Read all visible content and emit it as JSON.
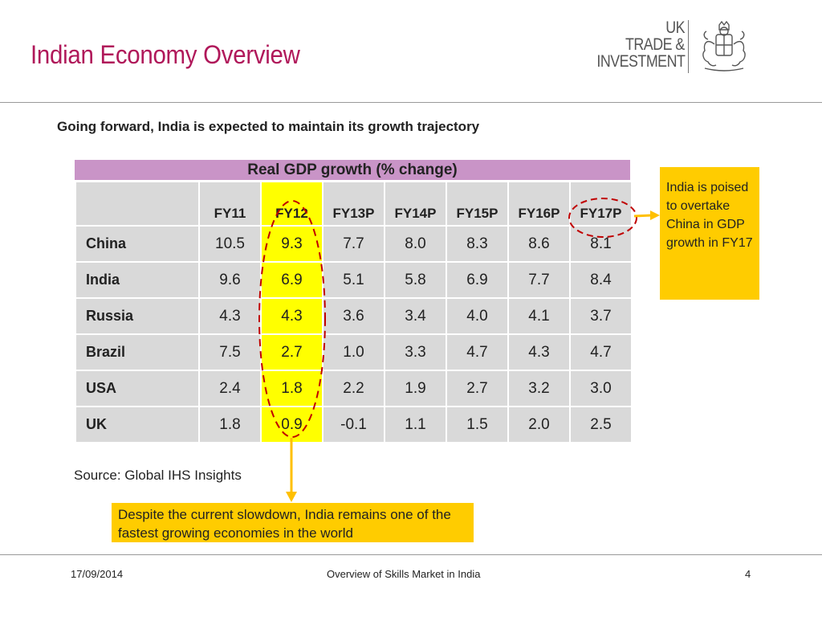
{
  "slide": {
    "title": "Indian Economy Overview",
    "subtitle": "Going forward, India is expected to maintain its growth trajectory"
  },
  "logo": {
    "lines": [
      "UK",
      "TRADE &",
      "INVESTMENT"
    ]
  },
  "table": {
    "title": "Real GDP growth (% change)",
    "columns": [
      "FY11",
      "FY12",
      "FY13P",
      "FY14P",
      "FY15P",
      "FY16P",
      "FY17P"
    ],
    "highlight_column": "FY12",
    "highlight_color": "#ffff00",
    "rows": [
      {
        "country": "China",
        "values": [
          "10.5",
          "9.3",
          "7.7",
          "8.0",
          "8.3",
          "8.6",
          "8.1"
        ]
      },
      {
        "country": "India",
        "values": [
          "9.6",
          "6.9",
          "5.1",
          "5.8",
          "6.9",
          "7.7",
          "8.4"
        ]
      },
      {
        "country": "Russia",
        "values": [
          "4.3",
          "4.3",
          "3.6",
          "3.4",
          "4.0",
          "4.1",
          "3.7"
        ]
      },
      {
        "country": "Brazil",
        "values": [
          "7.5",
          "2.7",
          "1.0",
          "3.3",
          "4.7",
          "4.3",
          "4.7"
        ]
      },
      {
        "country": "USA",
        "values": [
          "2.4",
          "1.8",
          "2.2",
          "1.9",
          "2.7",
          "3.2",
          "3.0"
        ]
      },
      {
        "country": "UK",
        "values": [
          "1.8",
          "0.9",
          "-0.1",
          "1.1",
          "1.5",
          "2.0",
          "2.5"
        ]
      }
    ]
  },
  "callouts": {
    "right": "India is poised to overtake China in GDP growth in FY17",
    "bottom": "Despite the current slowdown, India remains one of the fastest growing economies in the world"
  },
  "source": "Source: Global IHS Insights",
  "footer": {
    "date": "17/09/2014",
    "title": "Overview of Skills Market in India",
    "page": "4"
  },
  "colors": {
    "title": "#b0185a",
    "table_header_band": "#c994c7",
    "callout": "#ffcc00",
    "annotation_dashes": "#c00000",
    "arrow": "#ffc000"
  }
}
